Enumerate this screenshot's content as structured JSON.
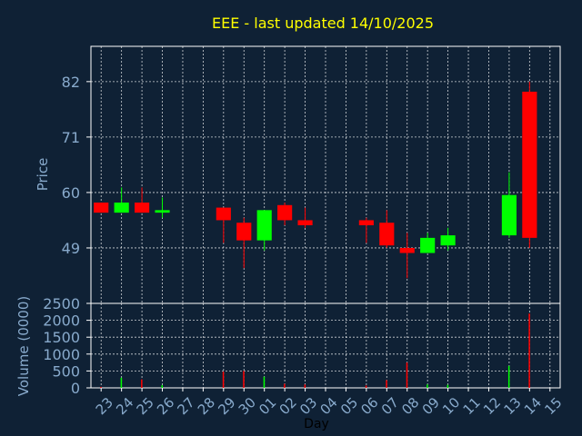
{
  "colors": {
    "background": "#0f2135",
    "frame": "#ffffff",
    "grid": "#ffffff",
    "title": "#ffff00",
    "axis_text": "#88aacc",
    "xlabel_text": "#000000",
    "up": "#00ff00",
    "down": "#ff0000"
  },
  "chart_data": [
    {
      "type": "candlestick",
      "title": "EEE - last updated 14/10/2025",
      "ylabel": "Price",
      "ylim": [
        38,
        89
      ],
      "yticks": [
        49,
        60,
        71,
        82
      ],
      "grid": true,
      "categories": [
        "23",
        "24",
        "25",
        "26",
        "27",
        "28",
        "29",
        "30",
        "01",
        "02",
        "03",
        "04",
        "05",
        "06",
        "07",
        "08",
        "09",
        "10",
        "11",
        "12",
        "13",
        "14",
        "15"
      ],
      "candles": [
        {
          "x": "23",
          "open": 58,
          "close": 56,
          "high": 58,
          "low": 56
        },
        {
          "x": "24",
          "open": 56,
          "close": 58,
          "high": 61,
          "low": 56
        },
        {
          "x": "25",
          "open": 58,
          "close": 56,
          "high": 61,
          "low": 56
        },
        {
          "x": "26",
          "open": 56,
          "close": 56.5,
          "high": 59,
          "low": 55
        },
        {
          "x": "29",
          "open": 57,
          "close": 54.5,
          "high": 57,
          "low": 50
        },
        {
          "x": "30",
          "open": 54,
          "close": 50.5,
          "high": 55,
          "low": 45
        },
        {
          "x": "01",
          "open": 50.5,
          "close": 56.5,
          "high": 56.5,
          "low": 48.5
        },
        {
          "x": "02",
          "open": 57.5,
          "close": 54.5,
          "high": 58,
          "low": 53.5
        },
        {
          "x": "03",
          "open": 54.5,
          "close": 53.5,
          "high": 57,
          "low": 53
        },
        {
          "x": "06",
          "open": 54.5,
          "close": 53.5,
          "high": 55,
          "low": 50
        },
        {
          "x": "07",
          "open": 54,
          "close": 49.5,
          "high": 56.5,
          "low": 49
        },
        {
          "x": "08",
          "open": 49,
          "close": 48,
          "high": 52,
          "low": 43
        },
        {
          "x": "09",
          "open": 48,
          "close": 51,
          "high": 52,
          "low": 48
        },
        {
          "x": "10",
          "open": 49.5,
          "close": 51.5,
          "high": 53,
          "low": 48.5
        },
        {
          "x": "13",
          "open": 51.5,
          "close": 59.5,
          "high": 64,
          "low": 51
        },
        {
          "x": "14",
          "open": 80,
          "close": 51,
          "high": 82,
          "low": 49
        }
      ]
    },
    {
      "type": "bar",
      "ylabel": "Volume (0000)",
      "xlabel": "Day",
      "ylim": [
        0,
        2500
      ],
      "yticks": [
        0,
        500,
        1000,
        1500,
        2000,
        2500
      ],
      "grid": true,
      "categories": [
        "23",
        "24",
        "25",
        "26",
        "27",
        "28",
        "29",
        "30",
        "01",
        "02",
        "03",
        "04",
        "05",
        "06",
        "07",
        "08",
        "09",
        "10",
        "11",
        "12",
        "13",
        "14",
        "15"
      ],
      "bars": [
        {
          "x": "23",
          "value": 30,
          "dir": "down"
        },
        {
          "x": "24",
          "value": 300,
          "dir": "up"
        },
        {
          "x": "25",
          "value": 250,
          "dir": "down"
        },
        {
          "x": "26",
          "value": 80,
          "dir": "up"
        },
        {
          "x": "29",
          "value": 480,
          "dir": "down"
        },
        {
          "x": "30",
          "value": 500,
          "dir": "down"
        },
        {
          "x": "01",
          "value": 330,
          "dir": "up"
        },
        {
          "x": "02",
          "value": 120,
          "dir": "down"
        },
        {
          "x": "03",
          "value": 100,
          "dir": "down"
        },
        {
          "x": "06",
          "value": 70,
          "dir": "down"
        },
        {
          "x": "07",
          "value": 230,
          "dir": "down"
        },
        {
          "x": "08",
          "value": 750,
          "dir": "down"
        },
        {
          "x": "09",
          "value": 100,
          "dir": "up"
        },
        {
          "x": "10",
          "value": 90,
          "dir": "up"
        },
        {
          "x": "13",
          "value": 650,
          "dir": "up"
        },
        {
          "x": "14",
          "value": 2200,
          "dir": "down"
        }
      ]
    }
  ]
}
